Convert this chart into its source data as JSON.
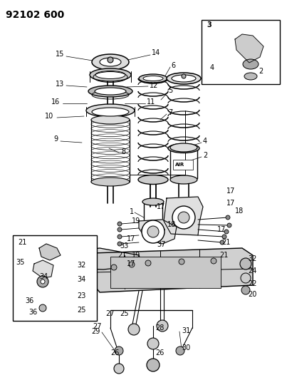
{
  "title": "92102 600",
  "fig_width": 3.96,
  "fig_height": 5.33,
  "dpi": 100,
  "bg_color": [
    255,
    255,
    255
  ],
  "line_color": [
    30,
    30,
    30
  ],
  "gray_color": [
    150,
    150,
    150
  ],
  "light_gray": [
    210,
    210,
    210
  ]
}
